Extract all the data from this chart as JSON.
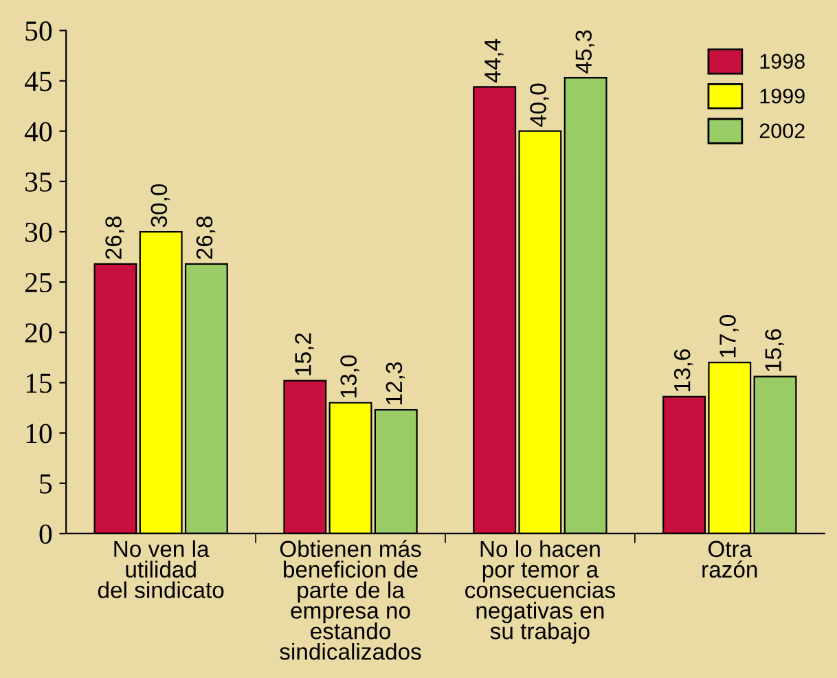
{
  "chart_data": {
    "type": "bar",
    "categories": [
      "No ven la\nutilidad\ndel sindicato",
      "Obtienen más\nbeneficion de\nparte de la\nempresa no\nestando\nsindicalizados",
      "No lo hacen\npor temor a\nconsecuencias\nnegativas en\nsu trabajo",
      "Otra\nrazón"
    ],
    "series": [
      {
        "name": "1998",
        "color": "#c8103f",
        "values": [
          26.8,
          15.2,
          44.4,
          13.6
        ],
        "value_labels": [
          "26,8",
          "15,2",
          "44,4",
          "13,6"
        ]
      },
      {
        "name": "1999",
        "color": "#ffff00",
        "values": [
          30.0,
          13.0,
          40.0,
          17.0
        ],
        "value_labels": [
          "30,0",
          "13,0",
          "40,0",
          "17,0"
        ]
      },
      {
        "name": "2002",
        "color": "#99cc66",
        "values": [
          26.8,
          12.3,
          45.3,
          15.6
        ],
        "value_labels": [
          "26,8",
          "12,3",
          "45,3",
          "15,6"
        ]
      }
    ],
    "ylim": [
      0,
      50
    ],
    "yticks": [
      0,
      5,
      10,
      15,
      20,
      25,
      30,
      35,
      40,
      45,
      50
    ],
    "grid": false,
    "legend": "top right"
  }
}
